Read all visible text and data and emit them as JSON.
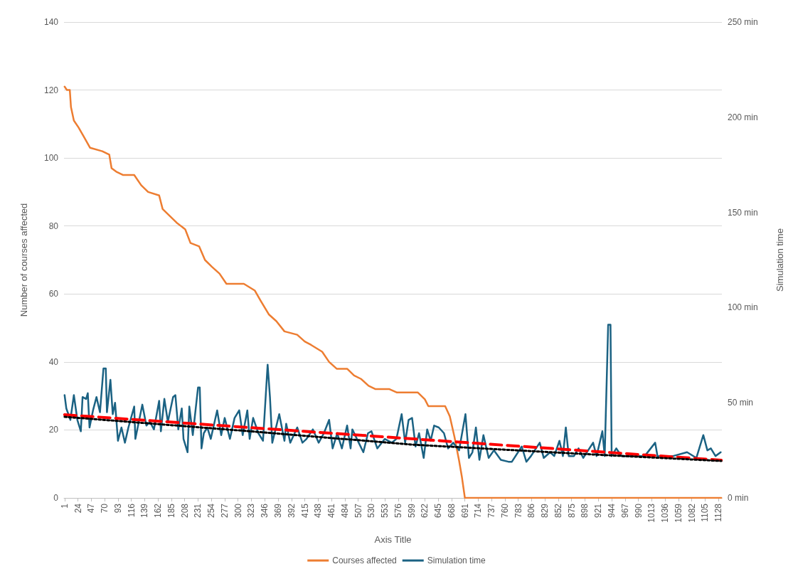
{
  "chart_data": {
    "type": "line",
    "xlabel": "Axis Title",
    "ylabel": "Number of courses affected",
    "y2label": "Simulation time",
    "xlim": [
      0,
      1134
    ],
    "xticks": [
      1,
      24,
      47,
      70,
      93,
      116,
      139,
      162,
      185,
      208,
      231,
      254,
      277,
      300,
      323,
      346,
      369,
      392,
      415,
      438,
      461,
      484,
      507,
      530,
      553,
      576,
      599,
      622,
      645,
      668,
      691,
      714,
      737,
      760,
      783,
      806,
      829,
      852,
      875,
      898,
      921,
      944,
      967,
      990,
      1013,
      1036,
      1059,
      1082,
      1105,
      1128
    ],
    "ylim": [
      0,
      140
    ],
    "yticks": [
      0,
      20,
      40,
      60,
      80,
      100,
      120,
      140
    ],
    "y2lim": [
      0,
      250
    ],
    "y2ticks": [
      {
        "value": 0,
        "label": "0 min"
      },
      {
        "value": 50,
        "label": "50 min"
      },
      {
        "value": 100,
        "label": "100 min"
      },
      {
        "value": 150,
        "label": "150 min"
      },
      {
        "value": 200,
        "label": "200 min"
      },
      {
        "value": 250,
        "label": "250 min"
      }
    ],
    "grid": "y",
    "legend": "bottom",
    "marker": "none",
    "series": [
      {
        "name": "Courses affected",
        "color": "#ed7d31",
        "line_style": "solid",
        "x": [
          1,
          5,
          10,
          12,
          17,
          25,
          35,
          45,
          66,
          78,
          82,
          90,
          102,
          121,
          133,
          145,
          164,
          170,
          182,
          194,
          209,
          218,
          233,
          243,
          255,
          268,
          280,
          310,
          329,
          339,
          353,
          366,
          380,
          402,
          415,
          426,
          445,
          457,
          470,
          488,
          500,
          512,
          525,
          537,
          561,
          574,
          610,
          622,
          628,
          657,
          665,
          673,
          681,
          686,
          691,
          1133
        ],
        "values": [
          121,
          120,
          120,
          115,
          111,
          109,
          106,
          103,
          102,
          101,
          97,
          96,
          95,
          95,
          92,
          90,
          89,
          85,
          83,
          81,
          79,
          75,
          74,
          70,
          68,
          66,
          63,
          63,
          61,
          58,
          54,
          52,
          49,
          48,
          46,
          45,
          43,
          40,
          38,
          38,
          36,
          35,
          33,
          32,
          32,
          31,
          31,
          29,
          27,
          27,
          24,
          18,
          11,
          6,
          0,
          0
        ]
      },
      {
        "name": "Simulation time",
        "color": "#1b6283",
        "axis": "y2",
        "line_style": "solid",
        "x": [
          1,
          4,
          11,
          17,
          23,
          29,
          32,
          38,
          41,
          44,
          50,
          56,
          62,
          68,
          72,
          74,
          80,
          84,
          88,
          93,
          99,
          105,
          111,
          121,
          123,
          135,
          142,
          148,
          155,
          164,
          167,
          173,
          179,
          188,
          192,
          197,
          203,
          206,
          213,
          216,
          222,
          231,
          234,
          237,
          241,
          247,
          253,
          264,
          271,
          277,
          286,
          294,
          302,
          308,
          316,
          320,
          326,
          335,
          343,
          351,
          355,
          359,
          371,
          380,
          383,
          390,
          402,
          411,
          418,
          429,
          439,
          448,
          457,
          463,
          471,
          479,
          488,
          494,
          497,
          508,
          516,
          524,
          530,
          540,
          553,
          565,
          573,
          582,
          588,
          594,
          600,
          606,
          612,
          620,
          626,
          632,
          638,
          646,
          655,
          662,
          671,
          681,
          692,
          698,
          704,
          710,
          716,
          723,
          732,
          741,
          753,
          766,
          772,
          789,
          797,
          805,
          820,
          827,
          838,
          845,
          854,
          860,
          865,
          870,
          879,
          887,
          895,
          912,
          918,
          928,
          932,
          938,
          942,
          944,
          952,
          961,
          985,
          1001,
          1019,
          1023,
          1050,
          1074,
          1090,
          1102,
          1109,
          1115,
          1123,
          1132
        ],
        "values": [
          54,
          47,
          41,
          54,
          41,
          35,
          53,
          52,
          55,
          37,
          46,
          53,
          45,
          68,
          68,
          45,
          62,
          44,
          50,
          30,
          37,
          29,
          37,
          48,
          31,
          49,
          38,
          40,
          36,
          51,
          35,
          52,
          40,
          53,
          54,
          36,
          47,
          31,
          24,
          48,
          33,
          58,
          58,
          26,
          34,
          37,
          31,
          46,
          33,
          42,
          31,
          42,
          46,
          33,
          46,
          31,
          42,
          34,
          30,
          70,
          53,
          29,
          44,
          30,
          39,
          29,
          37,
          29,
          31,
          36,
          29,
          34,
          41,
          26,
          34,
          26,
          38,
          26,
          36,
          29,
          24,
          34,
          35,
          26,
          31,
          29,
          31,
          44,
          29,
          41,
          42,
          27,
          34,
          21,
          36,
          30,
          38,
          37,
          34,
          26,
          29,
          25,
          44,
          21,
          24,
          37,
          20,
          33,
          21,
          25,
          20,
          19,
          19,
          27,
          19,
          22,
          29,
          21,
          24,
          22,
          30,
          22,
          37,
          22,
          22,
          26,
          21,
          29,
          22,
          35,
          22,
          91,
          91,
          22,
          26,
          22,
          22,
          22,
          29,
          22,
          22,
          24,
          21,
          33,
          25,
          26,
          22,
          24
        ]
      },
      {
        "color": "#ff0000",
        "axis": "y2",
        "line_style": "dashed",
        "x": [
          1,
          1133
        ],
        "values": [
          43.7,
          19.8
        ]
      },
      {
        "color": "#000000",
        "axis": "y2",
        "line_style": "dotted",
        "x": [
          1,
          300,
          600,
          900,
          1133
        ],
        "values": [
          42.6,
          35.5,
          28,
          23,
          19.4
        ]
      }
    ]
  }
}
